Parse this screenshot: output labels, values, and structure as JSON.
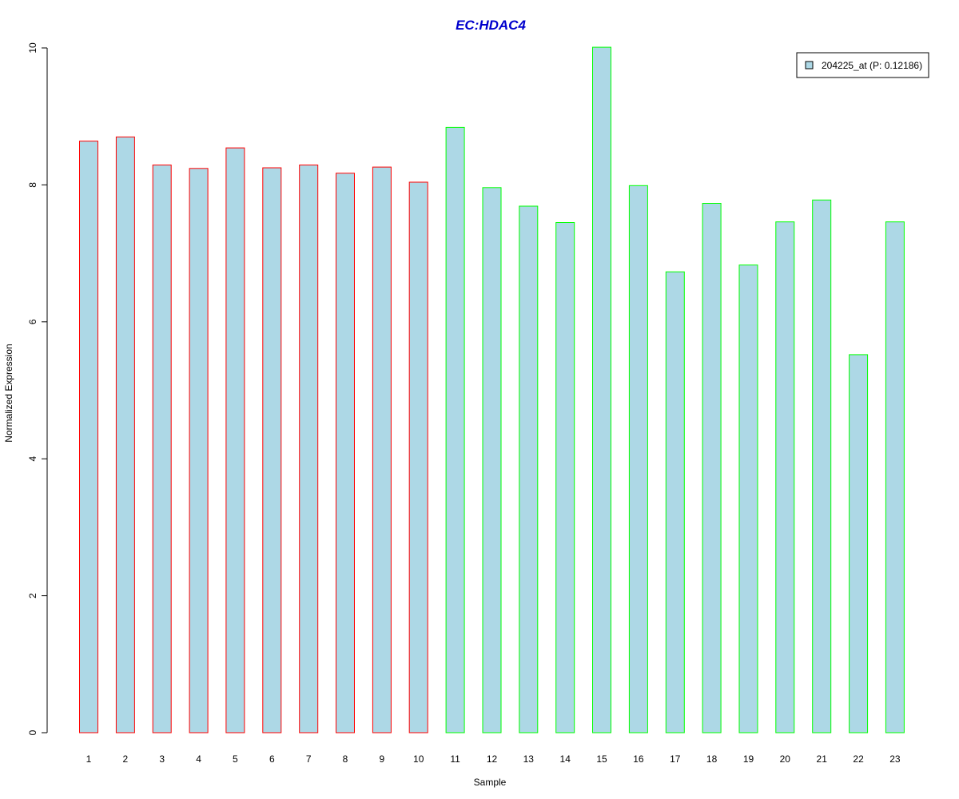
{
  "chart_data": {
    "type": "bar",
    "title": "EC:HDAC4",
    "xlabel": "Sample",
    "ylabel": "Normalized Expression",
    "categories": [
      "1",
      "2",
      "3",
      "4",
      "5",
      "6",
      "7",
      "8",
      "9",
      "10",
      "11",
      "12",
      "13",
      "14",
      "15",
      "16",
      "17",
      "18",
      "19",
      "20",
      "21",
      "22",
      "23"
    ],
    "series": [
      {
        "name": "204225_at (P: 0.12186)",
        "values": [
          8.64,
          8.7,
          8.29,
          8.24,
          8.54,
          8.25,
          8.29,
          8.17,
          8.26,
          8.04,
          8.84,
          7.96,
          7.69,
          7.45,
          10.01,
          7.99,
          6.73,
          7.73,
          6.83,
          7.46,
          7.78,
          5.52,
          7.46
        ]
      }
    ],
    "groups": [
      {
        "samples": [
          1,
          10
        ],
        "border_color": "#ff0000"
      },
      {
        "samples": [
          11,
          23
        ],
        "border_color": "#00ff00"
      }
    ],
    "ylim": [
      0,
      10
    ],
    "yticks": [
      "0",
      "2",
      "4",
      "6",
      "8",
      "10"
    ],
    "bar_fill": "#add8e6",
    "title_color": "#0000cd",
    "legend_position": "top-right",
    "grid": false
  }
}
